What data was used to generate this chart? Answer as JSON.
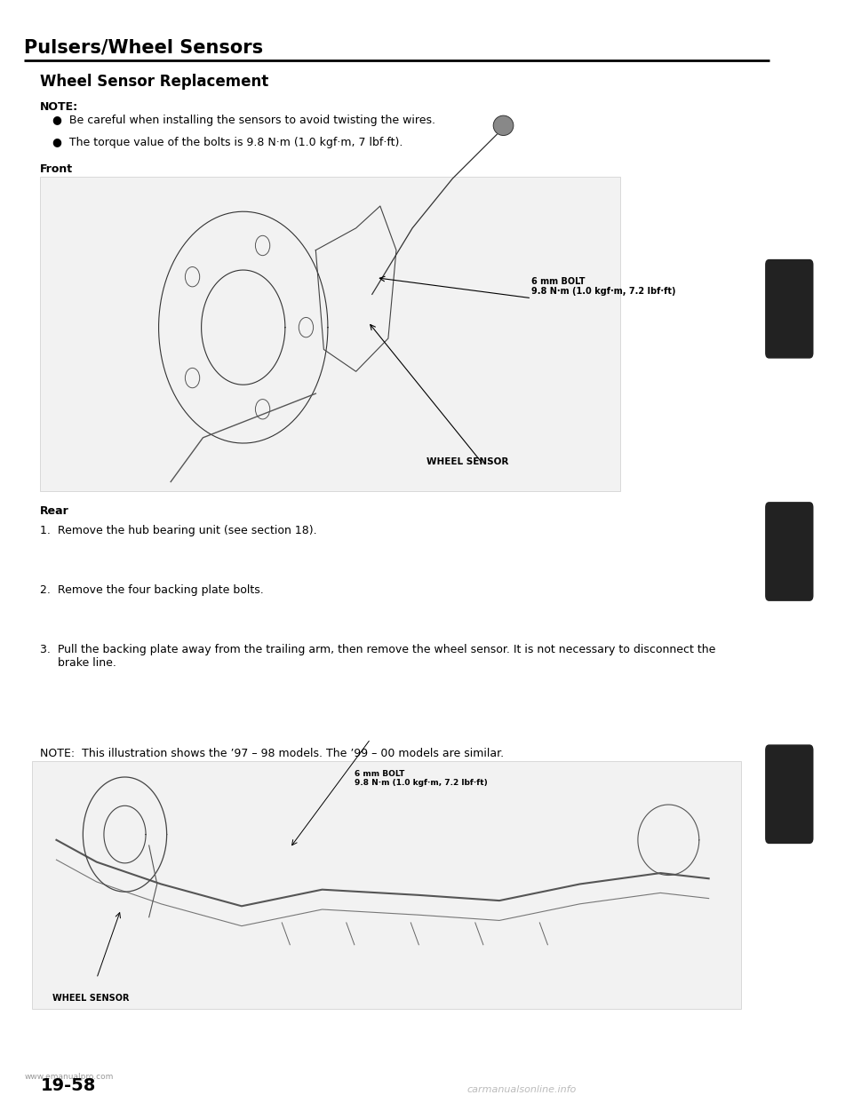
{
  "page_title": "Pulsers/Wheel Sensors",
  "section_title": "Wheel Sensor Replacement",
  "note_header": "NOTE:",
  "note_bullets": [
    "Be careful when installing the sensors to avoid twisting the wires.",
    "The torque value of the bolts is 9.8 N·m (1.0 kgf·m, 7 lbf·ft)."
  ],
  "front_label": "Front",
  "rear_label": "Rear",
  "front_bolt_label": "6 mm BOLT\n9.8 N·m (1.0 kgf·m, 7.2 lbf·ft)",
  "front_wheel_sensor_label": "WHEEL SENSOR",
  "rear_steps": [
    "1.  Remove the hub bearing unit (see section 18).",
    "2.  Remove the four backing plate bolts.",
    "3.  Pull the backing plate away from the trailing arm, then remove the wheel sensor. It is not necessary to disconnect the\n     brake line."
  ],
  "rear_note": "NOTE:  This illustration shows the ’97 – 98 models. The ’99 – 00 models are similar.",
  "rear_bolt_label": "6 mm BOLT\n9.8 N·m (1.0 kgf·m, 7.2 lbf·ft)",
  "rear_wheel_sensor_label": "WHEEL SENSOR",
  "footer_url": "www.emanualpro.com",
  "footer_page": "19-58",
  "footer_site": "carmanualsonline.info",
  "bg_color": "#ffffff",
  "text_color": "#000000",
  "title_fontsize": 15,
  "subtitle_fontsize": 12,
  "body_fontsize": 9,
  "small_fontsize": 8,
  "right_tab_color": "#222222"
}
